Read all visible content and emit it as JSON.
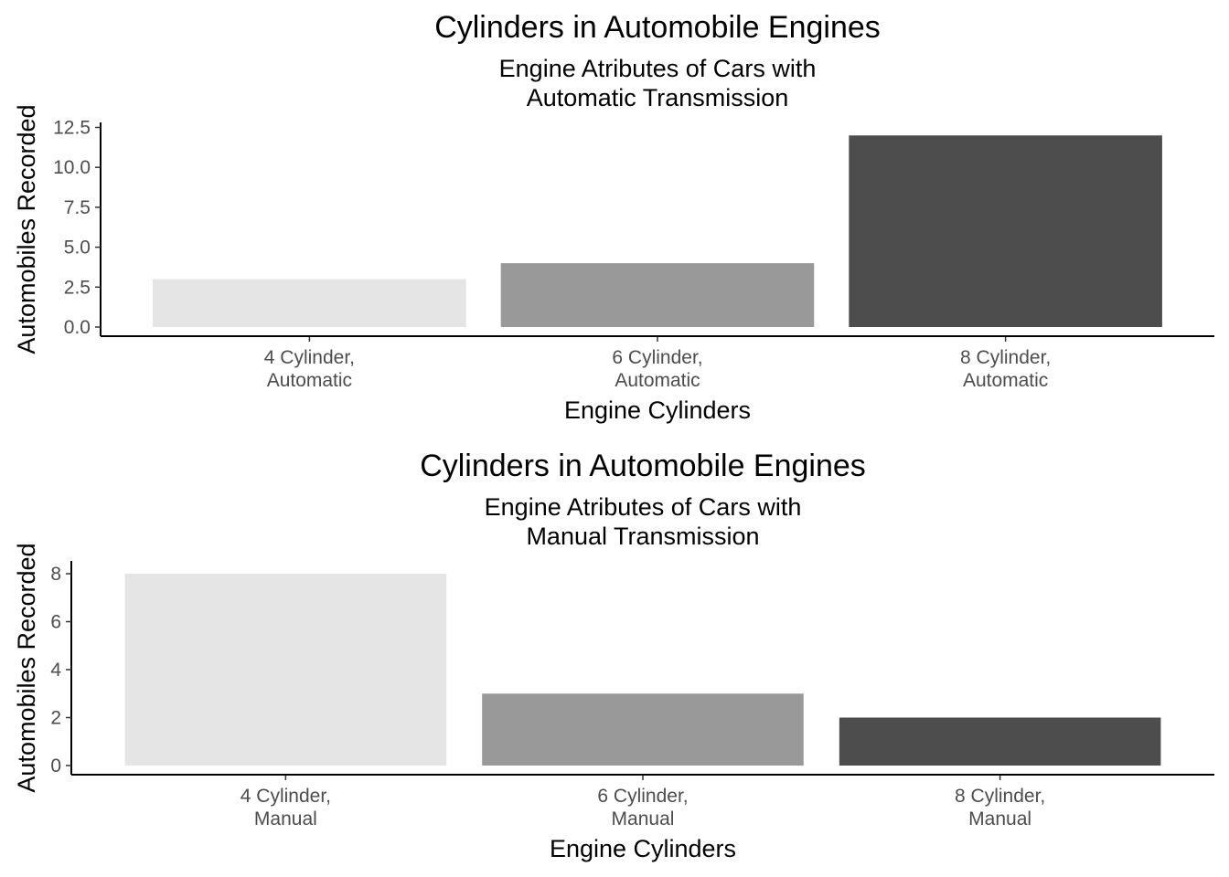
{
  "chart_data": [
    {
      "type": "bar",
      "title": "Cylinders in Automobile Engines",
      "subtitle": [
        "Engine Atributes of Cars with",
        "Automatic Transmission"
      ],
      "xlabel": "Engine Cylinders",
      "ylabel": "Automobiles Recorded",
      "categories": [
        [
          "4 Cylinder,",
          "Automatic"
        ],
        [
          "6 Cylinder,",
          "Automatic"
        ],
        [
          "8 Cylinder,",
          "Automatic"
        ]
      ],
      "values": [
        3,
        4,
        12
      ],
      "colors": [
        "#e5e5e5",
        "#999999",
        "#4d4d4d"
      ],
      "yticks": [
        0,
        2.5,
        5,
        7.5,
        10,
        12.5
      ],
      "ytick_labels": [
        "0.0",
        "2.5",
        "5.0",
        "7.5",
        "10.0",
        "12.5"
      ],
      "ylim": [
        0,
        12.5
      ],
      "grid": false,
      "legend": "none"
    },
    {
      "type": "bar",
      "title": "Cylinders in Automobile Engines",
      "subtitle": [
        "Engine Atributes of Cars with",
        "Manual Transmission"
      ],
      "xlabel": "Engine Cylinders",
      "ylabel": "Automobiles Recorded",
      "categories": [
        [
          "4 Cylinder,",
          "Manual"
        ],
        [
          "6 Cylinder,",
          "Manual"
        ],
        [
          "8 Cylinder,",
          "Manual"
        ]
      ],
      "values": [
        8,
        3,
        2
      ],
      "colors": [
        "#e5e5e5",
        "#999999",
        "#4d4d4d"
      ],
      "yticks": [
        0,
        2,
        4,
        6,
        8
      ],
      "ytick_labels": [
        "0",
        "2",
        "4",
        "6",
        "8"
      ],
      "ylim": [
        0,
        8
      ],
      "grid": false,
      "legend": "none"
    }
  ]
}
